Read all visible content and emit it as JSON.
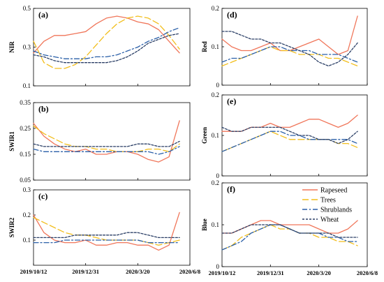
{
  "chart_data": [
    {
      "panel": "(a)",
      "ylabel": "NIR",
      "type": "line",
      "ylim": [
        0.1,
        0.5
      ],
      "yticks": [
        "0.1",
        "0.3",
        "0.5"
      ],
      "x": [
        "2019/10/12",
        "2019/10/28",
        "2019/11/13",
        "2019/11/29",
        "2019/12/15",
        "2019/12/31",
        "2020/1/16",
        "2020/2/1",
        "2020/2/17",
        "2020/3/4",
        "2020/3/20",
        "2020/4/5",
        "2020/4/21",
        "2020/5/7",
        "2020/5/23"
      ],
      "series": [
        {
          "name": "Rapeseed",
          "values": [
            0.27,
            0.33,
            0.36,
            0.36,
            0.37,
            0.38,
            0.42,
            0.45,
            0.46,
            0.45,
            0.43,
            0.42,
            0.39,
            0.33,
            0.27
          ]
        },
        {
          "name": "Trees",
          "values": [
            0.33,
            0.22,
            0.19,
            0.19,
            0.21,
            0.25,
            0.31,
            0.37,
            0.42,
            0.45,
            0.46,
            0.45,
            0.42,
            0.36,
            0.29
          ]
        },
        {
          "name": "Shrublands",
          "values": [
            0.28,
            0.26,
            0.25,
            0.24,
            0.24,
            0.24,
            0.25,
            0.25,
            0.26,
            0.28,
            0.3,
            0.33,
            0.35,
            0.38,
            0.4
          ]
        },
        {
          "name": "Wheat",
          "values": [
            0.26,
            0.25,
            0.23,
            0.22,
            0.22,
            0.22,
            0.22,
            0.22,
            0.23,
            0.25,
            0.28,
            0.32,
            0.34,
            0.36,
            0.37
          ]
        }
      ]
    },
    {
      "panel": "(b)",
      "ylabel": "SWIR1",
      "type": "line",
      "ylim": [
        0.05,
        0.35
      ],
      "yticks": [
        "0.05",
        "0.15",
        "0.25",
        "0.35"
      ],
      "x": [
        "2019/10/12",
        "2019/10/28",
        "2019/11/13",
        "2019/11/29",
        "2019/12/15",
        "2019/12/31",
        "2020/1/16",
        "2020/2/1",
        "2020/2/17",
        "2020/3/4",
        "2020/3/20",
        "2020/4/5",
        "2020/4/21",
        "2020/5/7",
        "2020/5/23"
      ],
      "series": [
        {
          "name": "Rapeseed",
          "values": [
            0.27,
            0.22,
            0.19,
            0.17,
            0.16,
            0.17,
            0.15,
            0.15,
            0.16,
            0.16,
            0.15,
            0.13,
            0.12,
            0.14,
            0.28
          ]
        },
        {
          "name": "Trees",
          "values": [
            0.26,
            0.23,
            0.21,
            0.19,
            0.18,
            0.18,
            0.17,
            0.17,
            0.16,
            0.16,
            0.16,
            0.17,
            0.17,
            0.16,
            0.19
          ]
        },
        {
          "name": "Shrublands",
          "values": [
            0.17,
            0.16,
            0.16,
            0.16,
            0.16,
            0.16,
            0.16,
            0.16,
            0.16,
            0.16,
            0.16,
            0.16,
            0.15,
            0.16,
            0.18
          ]
        },
        {
          "name": "Wheat",
          "values": [
            0.19,
            0.18,
            0.18,
            0.18,
            0.18,
            0.18,
            0.18,
            0.18,
            0.18,
            0.18,
            0.19,
            0.19,
            0.18,
            0.18,
            0.2
          ]
        }
      ]
    },
    {
      "panel": "(c)",
      "ylabel": "SWIR2",
      "type": "line",
      "ylim": [
        0.0,
        0.3
      ],
      "yticks": [
        "0.1",
        "0.2",
        "0.3"
      ],
      "x": [
        "2019/10/12",
        "2019/10/28",
        "2019/11/13",
        "2019/11/29",
        "2019/12/15",
        "2019/12/31",
        "2020/1/16",
        "2020/2/1",
        "2020/2/17",
        "2020/3/4",
        "2020/3/20",
        "2020/4/5",
        "2020/4/21",
        "2020/5/7",
        "2020/5/23"
      ],
      "series": [
        {
          "name": "Rapeseed",
          "values": [
            0.2,
            0.13,
            0.1,
            0.09,
            0.09,
            0.1,
            0.08,
            0.08,
            0.09,
            0.09,
            0.08,
            0.08,
            0.06,
            0.08,
            0.21
          ]
        },
        {
          "name": "Trees",
          "values": [
            0.19,
            0.17,
            0.15,
            0.13,
            0.12,
            0.12,
            0.11,
            0.1,
            0.1,
            0.1,
            0.1,
            0.09,
            0.08,
            0.09,
            0.1
          ]
        },
        {
          "name": "Shrublands",
          "values": [
            0.09,
            0.09,
            0.09,
            0.1,
            0.1,
            0.1,
            0.1,
            0.1,
            0.1,
            0.1,
            0.1,
            0.09,
            0.09,
            0.09,
            0.09
          ]
        },
        {
          "name": "Wheat",
          "values": [
            0.11,
            0.11,
            0.11,
            0.11,
            0.12,
            0.12,
            0.12,
            0.12,
            0.12,
            0.13,
            0.13,
            0.12,
            0.11,
            0.11,
            0.11
          ]
        }
      ]
    },
    {
      "panel": "(d)",
      "ylabel": "Red",
      "type": "line",
      "ylim": [
        0.0,
        0.2
      ],
      "yticks": [
        "0",
        "0.1",
        "0.2"
      ],
      "x": [
        "2019/10/12",
        "2019/10/28",
        "2019/11/13",
        "2019/11/29",
        "2019/12/15",
        "2019/12/31",
        "2020/1/16",
        "2020/2/1",
        "2020/2/17",
        "2020/3/4",
        "2020/3/20",
        "2020/4/5",
        "2020/4/21",
        "2020/5/7",
        "2020/5/23"
      ],
      "series": [
        {
          "name": "Rapeseed",
          "values": [
            0.12,
            0.1,
            0.09,
            0.09,
            0.1,
            0.11,
            0.09,
            0.09,
            0.1,
            0.11,
            0.12,
            0.1,
            0.08,
            0.09,
            0.18
          ]
        },
        {
          "name": "Trees",
          "values": [
            0.05,
            0.06,
            0.07,
            0.08,
            0.09,
            0.1,
            0.09,
            0.09,
            0.08,
            0.08,
            0.08,
            0.07,
            0.07,
            0.06,
            0.05
          ]
        },
        {
          "name": "Shrublands",
          "values": [
            0.06,
            0.07,
            0.07,
            0.08,
            0.09,
            0.1,
            0.1,
            0.09,
            0.09,
            0.09,
            0.08,
            0.08,
            0.08,
            0.07,
            0.06
          ]
        },
        {
          "name": "Wheat",
          "values": [
            0.14,
            0.14,
            0.13,
            0.12,
            0.12,
            0.11,
            0.11,
            0.1,
            0.09,
            0.08,
            0.06,
            0.05,
            0.06,
            0.08,
            0.11
          ]
        }
      ]
    },
    {
      "panel": "(e)",
      "ylabel": "Green",
      "type": "line",
      "ylim": [
        0.0,
        0.2
      ],
      "yticks": [
        "0",
        "0.1",
        "0.2"
      ],
      "x": [
        "2019/10/12",
        "2019/10/28",
        "2019/11/13",
        "2019/11/29",
        "2019/12/15",
        "2019/12/31",
        "2020/1/16",
        "2020/2/1",
        "2020/2/17",
        "2020/3/4",
        "2020/3/20",
        "2020/4/5",
        "2020/4/21",
        "2020/5/7",
        "2020/5/23"
      ],
      "series": [
        {
          "name": "Rapeseed",
          "values": [
            0.11,
            0.11,
            0.11,
            0.12,
            0.12,
            0.13,
            0.12,
            0.12,
            0.13,
            0.14,
            0.14,
            0.13,
            0.12,
            0.13,
            0.15
          ]
        },
        {
          "name": "Trees",
          "values": [
            0.06,
            0.07,
            0.08,
            0.09,
            0.1,
            0.11,
            0.1,
            0.09,
            0.09,
            0.09,
            0.09,
            0.09,
            0.08,
            0.08,
            0.07
          ]
        },
        {
          "name": "Shrublands",
          "values": [
            0.06,
            0.07,
            0.08,
            0.09,
            0.1,
            0.11,
            0.11,
            0.1,
            0.1,
            0.09,
            0.09,
            0.09,
            0.09,
            0.09,
            0.08
          ]
        },
        {
          "name": "Wheat",
          "values": [
            0.12,
            0.11,
            0.11,
            0.12,
            0.12,
            0.12,
            0.12,
            0.11,
            0.1,
            0.1,
            0.09,
            0.09,
            0.08,
            0.09,
            0.11
          ]
        }
      ]
    },
    {
      "panel": "(f)",
      "ylabel": "Blue",
      "type": "line",
      "ylim": [
        0.0,
        0.2
      ],
      "yticks": [
        "0",
        "0.1",
        "0.2"
      ],
      "x": [
        "2019/10/12",
        "2019/10/28",
        "2019/11/13",
        "2019/11/29",
        "2019/12/15",
        "2019/12/31",
        "2020/1/16",
        "2020/2/1",
        "2020/2/17",
        "2020/3/4",
        "2020/3/20",
        "2020/4/5",
        "2020/4/21",
        "2020/5/7",
        "2020/5/23"
      ],
      "series": [
        {
          "name": "Rapeseed",
          "values": [
            0.08,
            0.08,
            0.09,
            0.1,
            0.11,
            0.11,
            0.1,
            0.1,
            0.1,
            0.1,
            0.09,
            0.08,
            0.08,
            0.09,
            0.11
          ]
        },
        {
          "name": "Trees",
          "values": [
            0.04,
            0.05,
            0.07,
            0.08,
            0.09,
            0.1,
            0.09,
            0.09,
            0.08,
            0.08,
            0.07,
            0.07,
            0.06,
            0.06,
            0.05
          ]
        },
        {
          "name": "Shrublands",
          "values": [
            0.04,
            0.05,
            0.06,
            0.08,
            0.09,
            0.1,
            0.1,
            0.09,
            0.08,
            0.08,
            0.08,
            0.07,
            0.07,
            0.06,
            0.06
          ]
        },
        {
          "name": "Wheat",
          "values": [
            0.08,
            0.08,
            0.09,
            0.1,
            0.1,
            0.1,
            0.1,
            0.09,
            0.08,
            0.08,
            0.08,
            0.08,
            0.07,
            0.07,
            0.07
          ]
        }
      ]
    }
  ],
  "x_tick_labels": [
    "2019/10/12",
    "2019/12/31",
    "2020/3/20",
    "2020/6/8"
  ],
  "x_range": [
    "2019/10/12",
    "2020/6/8"
  ],
  "legend": {
    "placement": "inside panel (f), top-right",
    "entries": [
      "Rapeseed",
      "Trees",
      "Shrublands",
      "Wheat"
    ]
  },
  "style": {
    "Rapeseed": {
      "color": "#F0765A",
      "dash": "solid"
    },
    "Trees": {
      "color": "#F2BE1C",
      "dash": "long-dash"
    },
    "Shrublands": {
      "color": "#2A5FA8",
      "dash": "dash-dot"
    },
    "Wheat": {
      "color": "#2B3F66",
      "dash": "short-dash"
    }
  },
  "grid": false
}
